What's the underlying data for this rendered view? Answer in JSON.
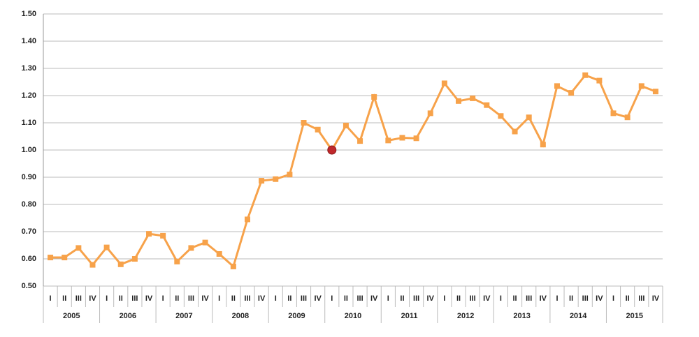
{
  "chart_data": {
    "type": "line",
    "categories": [
      "I",
      "II",
      "III",
      "IV",
      "I",
      "II",
      "III",
      "IV",
      "I",
      "II",
      "III",
      "IV",
      "I",
      "II",
      "III",
      "IV",
      "I",
      "II",
      "III",
      "IV",
      "I",
      "II",
      "III",
      "IV",
      "I",
      "II",
      "III",
      "IV",
      "I",
      "II",
      "III",
      "IV",
      "I",
      "II",
      "III",
      "IV",
      "I",
      "II",
      "III",
      "IV",
      "I",
      "II",
      "III",
      "IV"
    ],
    "groups": [
      "2005",
      "2006",
      "2007",
      "2008",
      "2009",
      "2010",
      "2011",
      "2012",
      "2013",
      "2014",
      "2015"
    ],
    "series": [
      {
        "color": "#f7a24a",
        "values": [
          0.605,
          0.605,
          0.64,
          0.578,
          0.642,
          0.58,
          0.6,
          0.692,
          0.685,
          0.59,
          0.64,
          0.66,
          0.618,
          0.572,
          0.745,
          0.887,
          0.893,
          0.91,
          1.1,
          1.075,
          1.0,
          1.09,
          1.033,
          1.195,
          1.035,
          1.045,
          1.043,
          1.135,
          1.245,
          1.18,
          1.19,
          1.165,
          1.125,
          1.068,
          1.12,
          1.02,
          1.235,
          1.21,
          1.275,
          1.255,
          1.135,
          1.12,
          1.235,
          1.215
        ]
      }
    ],
    "highlight": {
      "index": 20,
      "color": "#c0282b"
    },
    "ylim": [
      0.5,
      1.5
    ],
    "yticks": [
      {
        "value": 0.5,
        "label": "0.50"
      },
      {
        "value": 0.6,
        "label": "0.60"
      },
      {
        "value": 0.7,
        "label": "0.70"
      },
      {
        "value": 0.8,
        "label": "0.80"
      },
      {
        "value": 0.9,
        "label": "0.90"
      },
      {
        "value": 1.0,
        "label": "1.00"
      },
      {
        "value": 1.1,
        "label": "1.10"
      },
      {
        "value": 1.2,
        "label": "1.20"
      },
      {
        "value": 1.3,
        "label": "1.30"
      },
      {
        "value": 1.4,
        "label": "1.40"
      },
      {
        "value": 1.5,
        "label": "1.50"
      }
    ],
    "grid": true
  }
}
